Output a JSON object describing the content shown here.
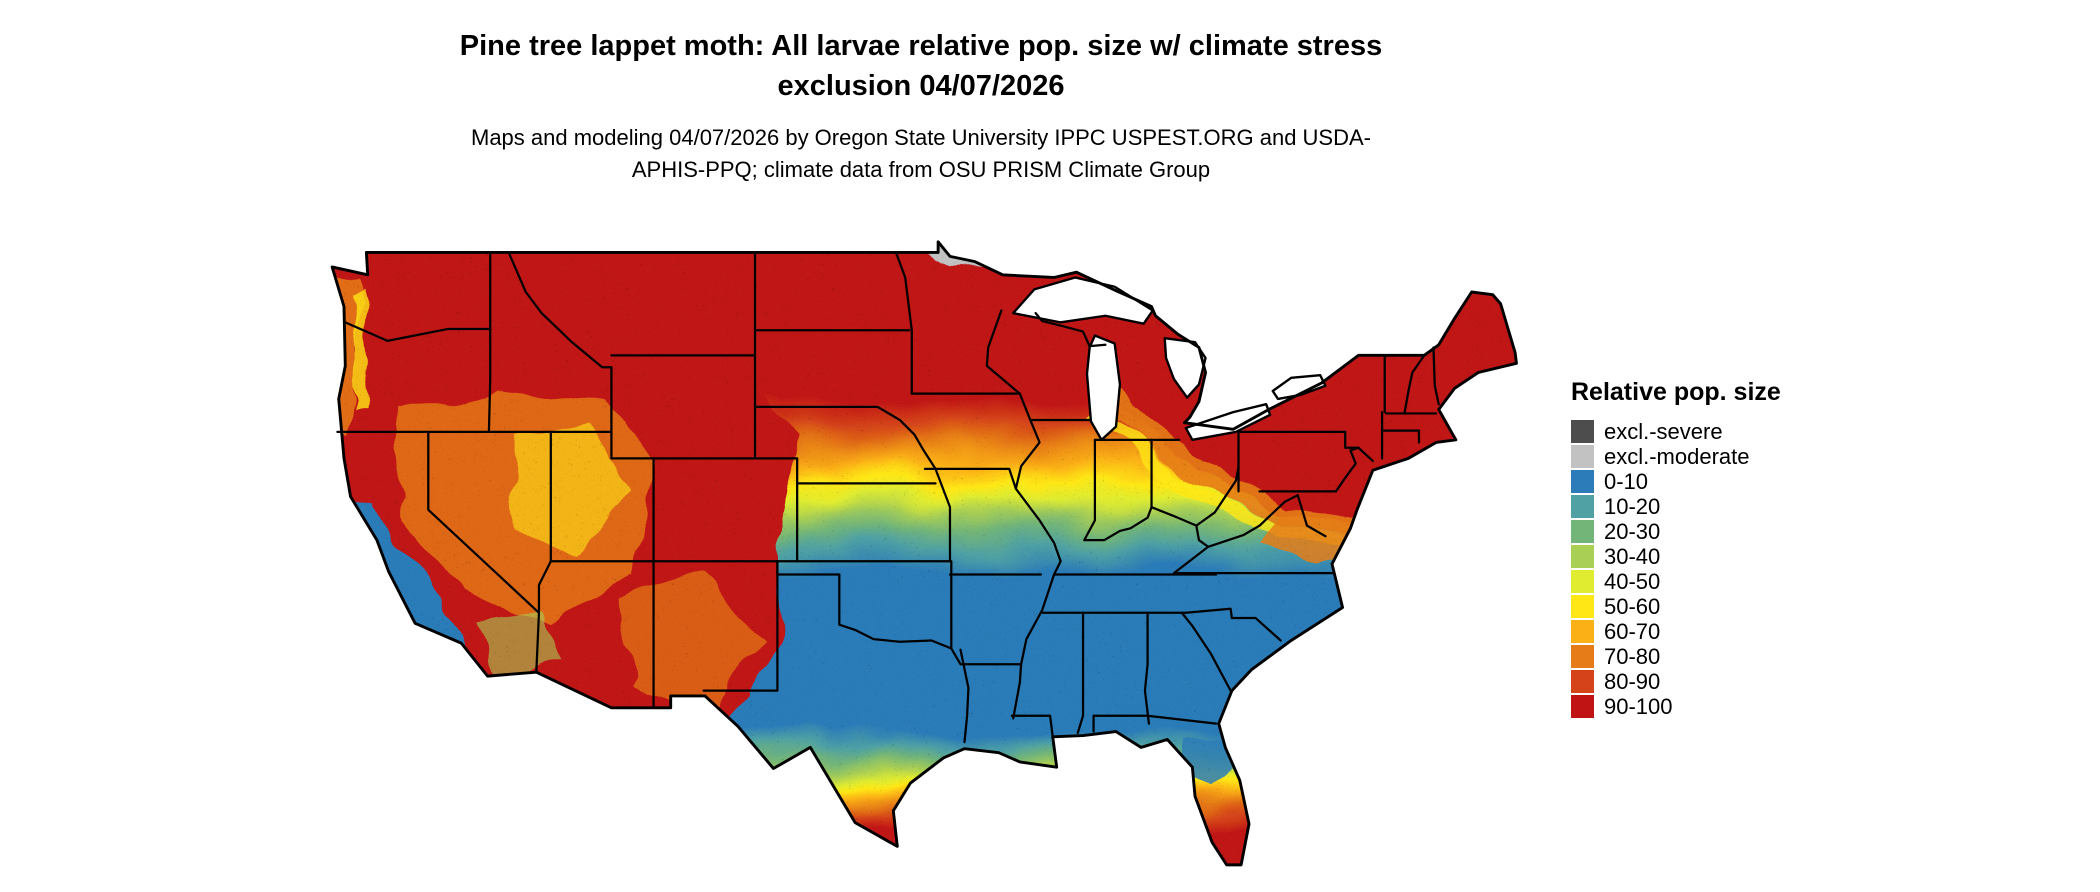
{
  "title": "Pine tree lappet moth: All larvae relative pop. size w/ climate stress exclusion 04/07/2026",
  "subtitle": "Maps and modeling 04/07/2026 by Oregon State University IPPC USPEST.ORG and USDA-APHIS-PPQ; climate data from OSU PRISM Climate Group",
  "legend": {
    "title": "Relative pop. size",
    "items": [
      {
        "label": "excl.-severe",
        "color": "#4d4d4d"
      },
      {
        "label": "excl.-moderate",
        "color": "#c2c2c2"
      },
      {
        "label": "0-10",
        "color": "#2b7cb8"
      },
      {
        "label": "10-20",
        "color": "#4fa1a4"
      },
      {
        "label": "20-30",
        "color": "#73b578"
      },
      {
        "label": "30-40",
        "color": "#a9cf54"
      },
      {
        "label": "40-50",
        "color": "#e0ec30"
      },
      {
        "label": "50-60",
        "color": "#ffe715"
      },
      {
        "label": "60-70",
        "color": "#fbb116"
      },
      {
        "label": "70-80",
        "color": "#e67c17"
      },
      {
        "label": "80-90",
        "color": "#d4431a"
      },
      {
        "label": "90-100",
        "color": "#c01414"
      }
    ]
  }
}
